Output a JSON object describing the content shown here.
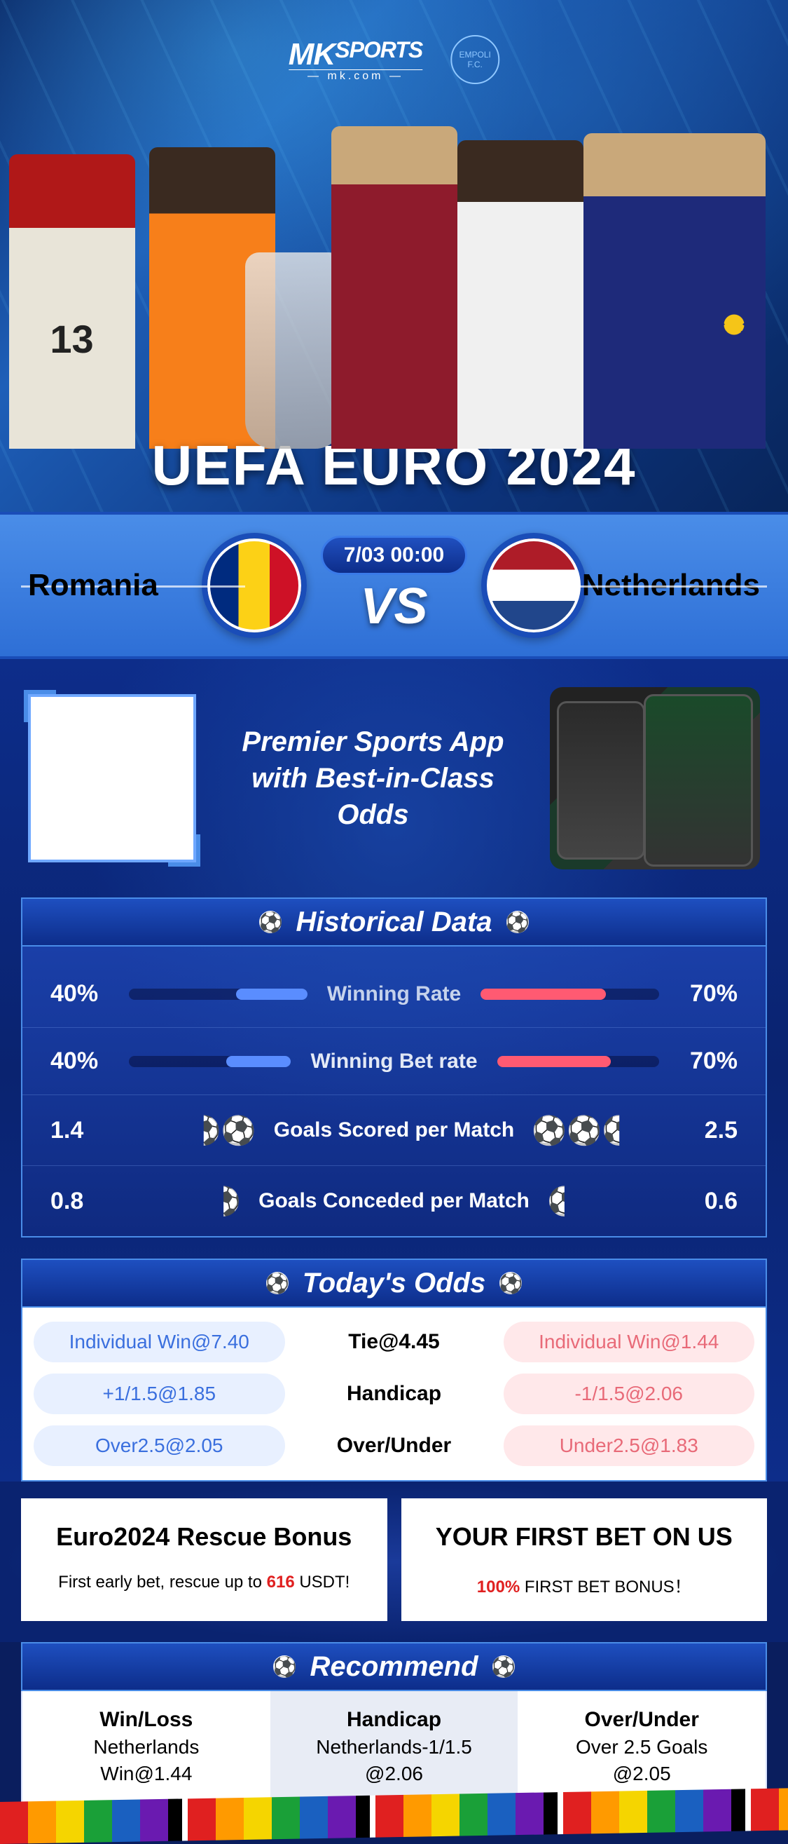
{
  "brand": {
    "name": "MK",
    "sports": "SPORTS",
    "sub": "— mk.com —",
    "partner_crest": "EMPOLI F.C."
  },
  "hero_title": "UEFA EURO 2024",
  "match": {
    "team_left": "Romania",
    "team_right": "Netherlands",
    "datetime": "7/03 00:00",
    "vs": "VS",
    "flag_left_colors": [
      "#002b7f",
      "#fcd116",
      "#ce1126"
    ],
    "flag_right_colors": [
      "#ae1c28",
      "#ffffff",
      "#21468b"
    ]
  },
  "promo": {
    "line1": "Premier Sports App",
    "line2": "with Best-in-Class Odds"
  },
  "historical": {
    "title": "Historical Data",
    "rows": [
      {
        "label": "Winning Rate",
        "left_val": "40%",
        "right_val": "70%",
        "left_pct": 40,
        "right_pct": 70,
        "type": "bar"
      },
      {
        "label": "Winning Bet rate",
        "left_val": "40%",
        "right_val": "70%",
        "left_pct": 40,
        "right_pct": 70,
        "type": "bar"
      },
      {
        "label": "Goals Scored per Match",
        "left_val": "1.4",
        "right_val": "2.5",
        "left_balls": 1.4,
        "right_balls": 2.5,
        "type": "balls"
      },
      {
        "label": "Goals Conceded per Match",
        "left_val": "0.8",
        "right_val": "0.6",
        "left_balls": 0.8,
        "right_balls": 0.6,
        "type": "balls"
      }
    ],
    "colors": {
      "left": "#5a8dff",
      "right": "#ff5a72",
      "track": "rgba(0,0,30,0.4)"
    }
  },
  "odds": {
    "title": "Today's Odds",
    "rows": [
      {
        "left": "Individual Win@7.40",
        "center": "Tie@4.45",
        "right": "Individual Win@1.44"
      },
      {
        "left": "+1/1.5@1.85",
        "center": "Handicap",
        "right": "-1/1.5@2.06"
      },
      {
        "left": "Over2.5@2.05",
        "center": "Over/Under",
        "right": "Under2.5@1.83"
      }
    ],
    "pill_colors": {
      "left_bg": "#e8f0ff",
      "left_text": "#3a6fde",
      "right_bg": "#ffe8ea",
      "right_text": "#e86a78"
    }
  },
  "bonus": {
    "cards": [
      {
        "title": "Euro2024 Rescue Bonus",
        "sub_pre": "First early bet, rescue up to ",
        "sub_hl": "616",
        "sub_post": " USDT!"
      },
      {
        "title": "YOUR FIRST BET ON US",
        "sub_pre": "",
        "sub_hl": "100%",
        "sub_post": " FIRST BET BONUS！"
      }
    ]
  },
  "recommend": {
    "title": "Recommend",
    "cols": [
      {
        "head": "Win/Loss",
        "line1": "Netherlands",
        "line2": "Win@1.44"
      },
      {
        "head": "Handicap",
        "line1": "Netherlands-1/1.5",
        "line2": "@2.06"
      },
      {
        "head": "Over/Under",
        "line1": "Over 2.5 Goals",
        "line2": "@2.05"
      }
    ]
  },
  "palette": {
    "bg_primary": "#0d2d8a",
    "bg_light": "#4a8de8",
    "border": "#4a8de8",
    "white": "#ffffff",
    "accent_red": "#e02020"
  }
}
